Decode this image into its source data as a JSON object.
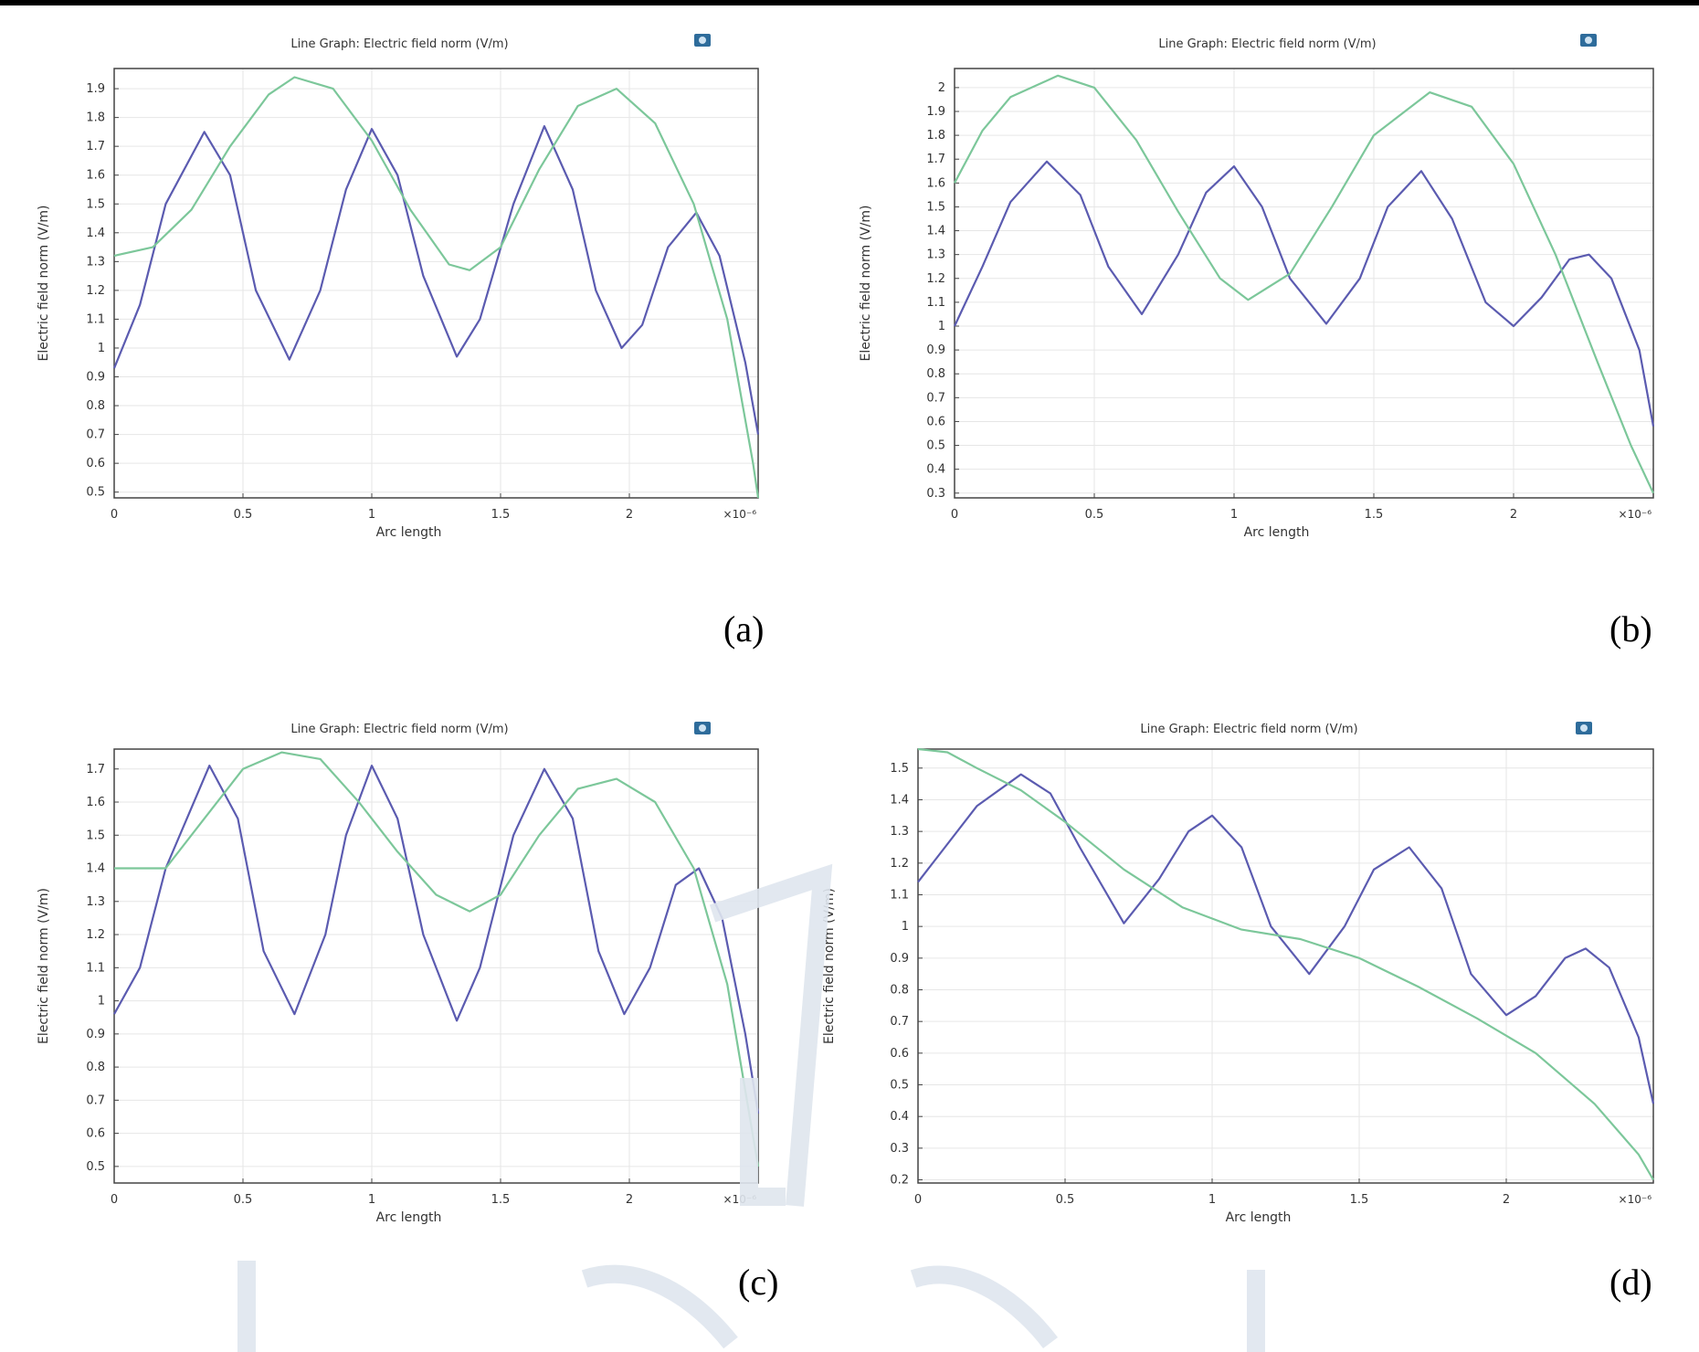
{
  "colors": {
    "series1": "#5b5bb0",
    "series2": "#7cc79a",
    "grid": "#e6e6e6",
    "frame": "#444444"
  },
  "panels": [
    {
      "id": "a",
      "panel_label": "(a)",
      "icon": "camera-icon",
      "chart_data": {
        "type": "line",
        "title": "Line Graph: Electric field norm (V/m)",
        "xlabel": "Arc length",
        "ylabel": "Electric field norm (V/m)",
        "x_multiplier": "×10⁻⁶",
        "xlim": [
          0,
          2.5
        ],
        "ylim": [
          0.48,
          1.97
        ],
        "xticks": [
          0,
          0.5,
          1,
          1.5,
          2
        ],
        "yticks": [
          0.5,
          0.6,
          0.7,
          0.8,
          0.9,
          1,
          1.1,
          1.2,
          1.3,
          1.4,
          1.5,
          1.6,
          1.7,
          1.8,
          1.9
        ],
        "grid": true,
        "series": [
          {
            "color": "#5b5bb0",
            "points": [
              [
                0,
                0.93
              ],
              [
                0.1,
                1.15
              ],
              [
                0.2,
                1.5
              ],
              [
                0.35,
                1.75
              ],
              [
                0.45,
                1.6
              ],
              [
                0.55,
                1.2
              ],
              [
                0.68,
                0.96
              ],
              [
                0.8,
                1.2
              ],
              [
                0.9,
                1.55
              ],
              [
                1.0,
                1.76
              ],
              [
                1.1,
                1.6
              ],
              [
                1.2,
                1.25
              ],
              [
                1.33,
                0.97
              ],
              [
                1.42,
                1.1
              ],
              [
                1.55,
                1.5
              ],
              [
                1.67,
                1.77
              ],
              [
                1.78,
                1.55
              ],
              [
                1.87,
                1.2
              ],
              [
                1.97,
                1.0
              ],
              [
                2.05,
                1.08
              ],
              [
                2.15,
                1.35
              ],
              [
                2.26,
                1.47
              ],
              [
                2.35,
                1.32
              ],
              [
                2.45,
                0.95
              ],
              [
                2.5,
                0.7
              ]
            ]
          },
          {
            "color": "#7cc79a",
            "points": [
              [
                0,
                1.32
              ],
              [
                0.15,
                1.35
              ],
              [
                0.3,
                1.48
              ],
              [
                0.45,
                1.7
              ],
              [
                0.6,
                1.88
              ],
              [
                0.7,
                1.94
              ],
              [
                0.85,
                1.9
              ],
              [
                1.0,
                1.72
              ],
              [
                1.15,
                1.48
              ],
              [
                1.3,
                1.29
              ],
              [
                1.38,
                1.27
              ],
              [
                1.5,
                1.35
              ],
              [
                1.65,
                1.62
              ],
              [
                1.8,
                1.84
              ],
              [
                1.95,
                1.9
              ],
              [
                2.1,
                1.78
              ],
              [
                2.25,
                1.5
              ],
              [
                2.38,
                1.1
              ],
              [
                2.48,
                0.6
              ],
              [
                2.5,
                0.48
              ]
            ]
          }
        ]
      }
    },
    {
      "id": "b",
      "panel_label": "(b)",
      "icon": "camera-icon",
      "chart_data": {
        "type": "line",
        "title": "Line Graph: Electric field norm (V/m)",
        "xlabel": "Arc length",
        "ylabel": "Electric field norm (V/m)",
        "x_multiplier": "×10⁻⁶",
        "xlim": [
          0,
          2.5
        ],
        "ylim": [
          0.28,
          2.08
        ],
        "xticks": [
          0,
          0.5,
          1,
          1.5,
          2
        ],
        "yticks": [
          0.3,
          0.4,
          0.5,
          0.6,
          0.7,
          0.8,
          0.9,
          1,
          1.1,
          1.2,
          1.3,
          1.4,
          1.5,
          1.6,
          1.7,
          1.8,
          1.9,
          2
        ],
        "grid": true,
        "series": [
          {
            "color": "#5b5bb0",
            "points": [
              [
                0,
                1.0
              ],
              [
                0.1,
                1.25
              ],
              [
                0.2,
                1.52
              ],
              [
                0.33,
                1.69
              ],
              [
                0.45,
                1.55
              ],
              [
                0.55,
                1.25
              ],
              [
                0.67,
                1.05
              ],
              [
                0.8,
                1.3
              ],
              [
                0.9,
                1.56
              ],
              [
                1.0,
                1.67
              ],
              [
                1.1,
                1.5
              ],
              [
                1.2,
                1.2
              ],
              [
                1.33,
                1.01
              ],
              [
                1.45,
                1.2
              ],
              [
                1.55,
                1.5
              ],
              [
                1.67,
                1.65
              ],
              [
                1.78,
                1.45
              ],
              [
                1.9,
                1.1
              ],
              [
                2.0,
                1.0
              ],
              [
                2.1,
                1.12
              ],
              [
                2.2,
                1.28
              ],
              [
                2.27,
                1.3
              ],
              [
                2.35,
                1.2
              ],
              [
                2.45,
                0.9
              ],
              [
                2.5,
                0.58
              ]
            ]
          },
          {
            "color": "#7cc79a",
            "points": [
              [
                0,
                1.6
              ],
              [
                0.1,
                1.82
              ],
              [
                0.2,
                1.96
              ],
              [
                0.37,
                2.05
              ],
              [
                0.5,
                2.0
              ],
              [
                0.65,
                1.78
              ],
              [
                0.8,
                1.48
              ],
              [
                0.95,
                1.2
              ],
              [
                1.05,
                1.11
              ],
              [
                1.2,
                1.22
              ],
              [
                1.35,
                1.5
              ],
              [
                1.5,
                1.8
              ],
              [
                1.7,
                1.98
              ],
              [
                1.85,
                1.92
              ],
              [
                2.0,
                1.68
              ],
              [
                2.15,
                1.3
              ],
              [
                2.3,
                0.85
              ],
              [
                2.42,
                0.5
              ],
              [
                2.5,
                0.3
              ]
            ]
          }
        ]
      }
    },
    {
      "id": "c",
      "panel_label": "(c)",
      "icon": "camera-icon",
      "chart_data": {
        "type": "line",
        "title": "Line Graph: Electric field norm (V/m)",
        "xlabel": "Arc length",
        "ylabel": "Electric field norm (V/m)",
        "x_multiplier": "×10⁻⁶",
        "xlim": [
          0,
          2.5
        ],
        "ylim": [
          0.45,
          1.76
        ],
        "xticks": [
          0,
          0.5,
          1,
          1.5,
          2
        ],
        "yticks": [
          0.5,
          0.6,
          0.7,
          0.8,
          0.9,
          1,
          1.1,
          1.2,
          1.3,
          1.4,
          1.5,
          1.6,
          1.7
        ],
        "ytick_labels": [
          "0.5",
          "0.6",
          "0.7",
          "0.8",
          "0.9",
          "1",
          "1.1",
          "1.2",
          "1.3",
          "1.4",
          "1.5",
          "1.6",
          "1.7"
        ],
        "grid": true,
        "series": [
          {
            "color": "#5b5bb0",
            "points": [
              [
                0,
                0.96
              ],
              [
                0.1,
                1.1
              ],
              [
                0.2,
                1.4
              ],
              [
                0.37,
                1.71
              ],
              [
                0.48,
                1.55
              ],
              [
                0.58,
                1.15
              ],
              [
                0.7,
                0.96
              ],
              [
                0.82,
                1.2
              ],
              [
                0.9,
                1.5
              ],
              [
                1.0,
                1.71
              ],
              [
                1.1,
                1.55
              ],
              [
                1.2,
                1.2
              ],
              [
                1.33,
                0.94
              ],
              [
                1.42,
                1.1
              ],
              [
                1.55,
                1.5
              ],
              [
                1.67,
                1.7
              ],
              [
                1.78,
                1.55
              ],
              [
                1.88,
                1.15
              ],
              [
                1.98,
                0.96
              ],
              [
                2.08,
                1.1
              ],
              [
                2.18,
                1.35
              ],
              [
                2.27,
                1.4
              ],
              [
                2.36,
                1.25
              ],
              [
                2.45,
                0.9
              ],
              [
                2.5,
                0.66
              ]
            ]
          },
          {
            "color": "#7cc79a",
            "points": [
              [
                0,
                1.4
              ],
              [
                0.1,
                1.4
              ],
              [
                0.2,
                1.4
              ],
              [
                0.35,
                1.55
              ],
              [
                0.5,
                1.7
              ],
              [
                0.65,
                1.75
              ],
              [
                0.8,
                1.73
              ],
              [
                0.95,
                1.6
              ],
              [
                1.1,
                1.45
              ],
              [
                1.25,
                1.32
              ],
              [
                1.38,
                1.27
              ],
              [
                1.5,
                1.32
              ],
              [
                1.65,
                1.5
              ],
              [
                1.8,
                1.64
              ],
              [
                1.95,
                1.67
              ],
              [
                2.1,
                1.6
              ],
              [
                2.25,
                1.4
              ],
              [
                2.38,
                1.05
              ],
              [
                2.5,
                0.5
              ]
            ]
          }
        ]
      }
    },
    {
      "id": "d",
      "panel_label": "(d)",
      "icon": "camera-icon",
      "chart_data": {
        "type": "line",
        "title": "Line Graph: Electric field norm (V/m)",
        "xlabel": "Arc length",
        "ylabel": "Electric field norm (V/m)",
        "x_multiplier": "×10⁻⁶",
        "xlim": [
          0,
          2.5
        ],
        "ylim": [
          0.19,
          1.56
        ],
        "xticks": [
          0,
          0.5,
          1,
          1.5,
          2
        ],
        "yticks": [
          0.2,
          0.3,
          0.4,
          0.5,
          0.6,
          0.7,
          0.8,
          0.9,
          1,
          1.1,
          1.2,
          1.3,
          1.4,
          1.5
        ],
        "grid": true,
        "series": [
          {
            "color": "#5b5bb0",
            "points": [
              [
                0,
                1.14
              ],
              [
                0.1,
                1.26
              ],
              [
                0.2,
                1.38
              ],
              [
                0.35,
                1.48
              ],
              [
                0.45,
                1.42
              ],
              [
                0.55,
                1.25
              ],
              [
                0.7,
                1.01
              ],
              [
                0.82,
                1.15
              ],
              [
                0.92,
                1.3
              ],
              [
                1.0,
                1.35
              ],
              [
                1.1,
                1.25
              ],
              [
                1.2,
                1.0
              ],
              [
                1.33,
                0.85
              ],
              [
                1.45,
                1.0
              ],
              [
                1.55,
                1.18
              ],
              [
                1.67,
                1.25
              ],
              [
                1.78,
                1.12
              ],
              [
                1.88,
                0.85
              ],
              [
                2.0,
                0.72
              ],
              [
                2.1,
                0.78
              ],
              [
                2.2,
                0.9
              ],
              [
                2.27,
                0.93
              ],
              [
                2.35,
                0.87
              ],
              [
                2.45,
                0.65
              ],
              [
                2.5,
                0.44
              ]
            ]
          },
          {
            "color": "#7cc79a",
            "points": [
              [
                0,
                1.56
              ],
              [
                0.1,
                1.55
              ],
              [
                0.2,
                1.5
              ],
              [
                0.35,
                1.43
              ],
              [
                0.5,
                1.33
              ],
              [
                0.7,
                1.18
              ],
              [
                0.9,
                1.06
              ],
              [
                1.1,
                0.99
              ],
              [
                1.3,
                0.96
              ],
              [
                1.5,
                0.9
              ],
              [
                1.7,
                0.81
              ],
              [
                1.9,
                0.71
              ],
              [
                2.1,
                0.6
              ],
              [
                2.3,
                0.44
              ],
              [
                2.45,
                0.28
              ],
              [
                2.5,
                0.2
              ]
            ]
          }
        ]
      }
    }
  ]
}
